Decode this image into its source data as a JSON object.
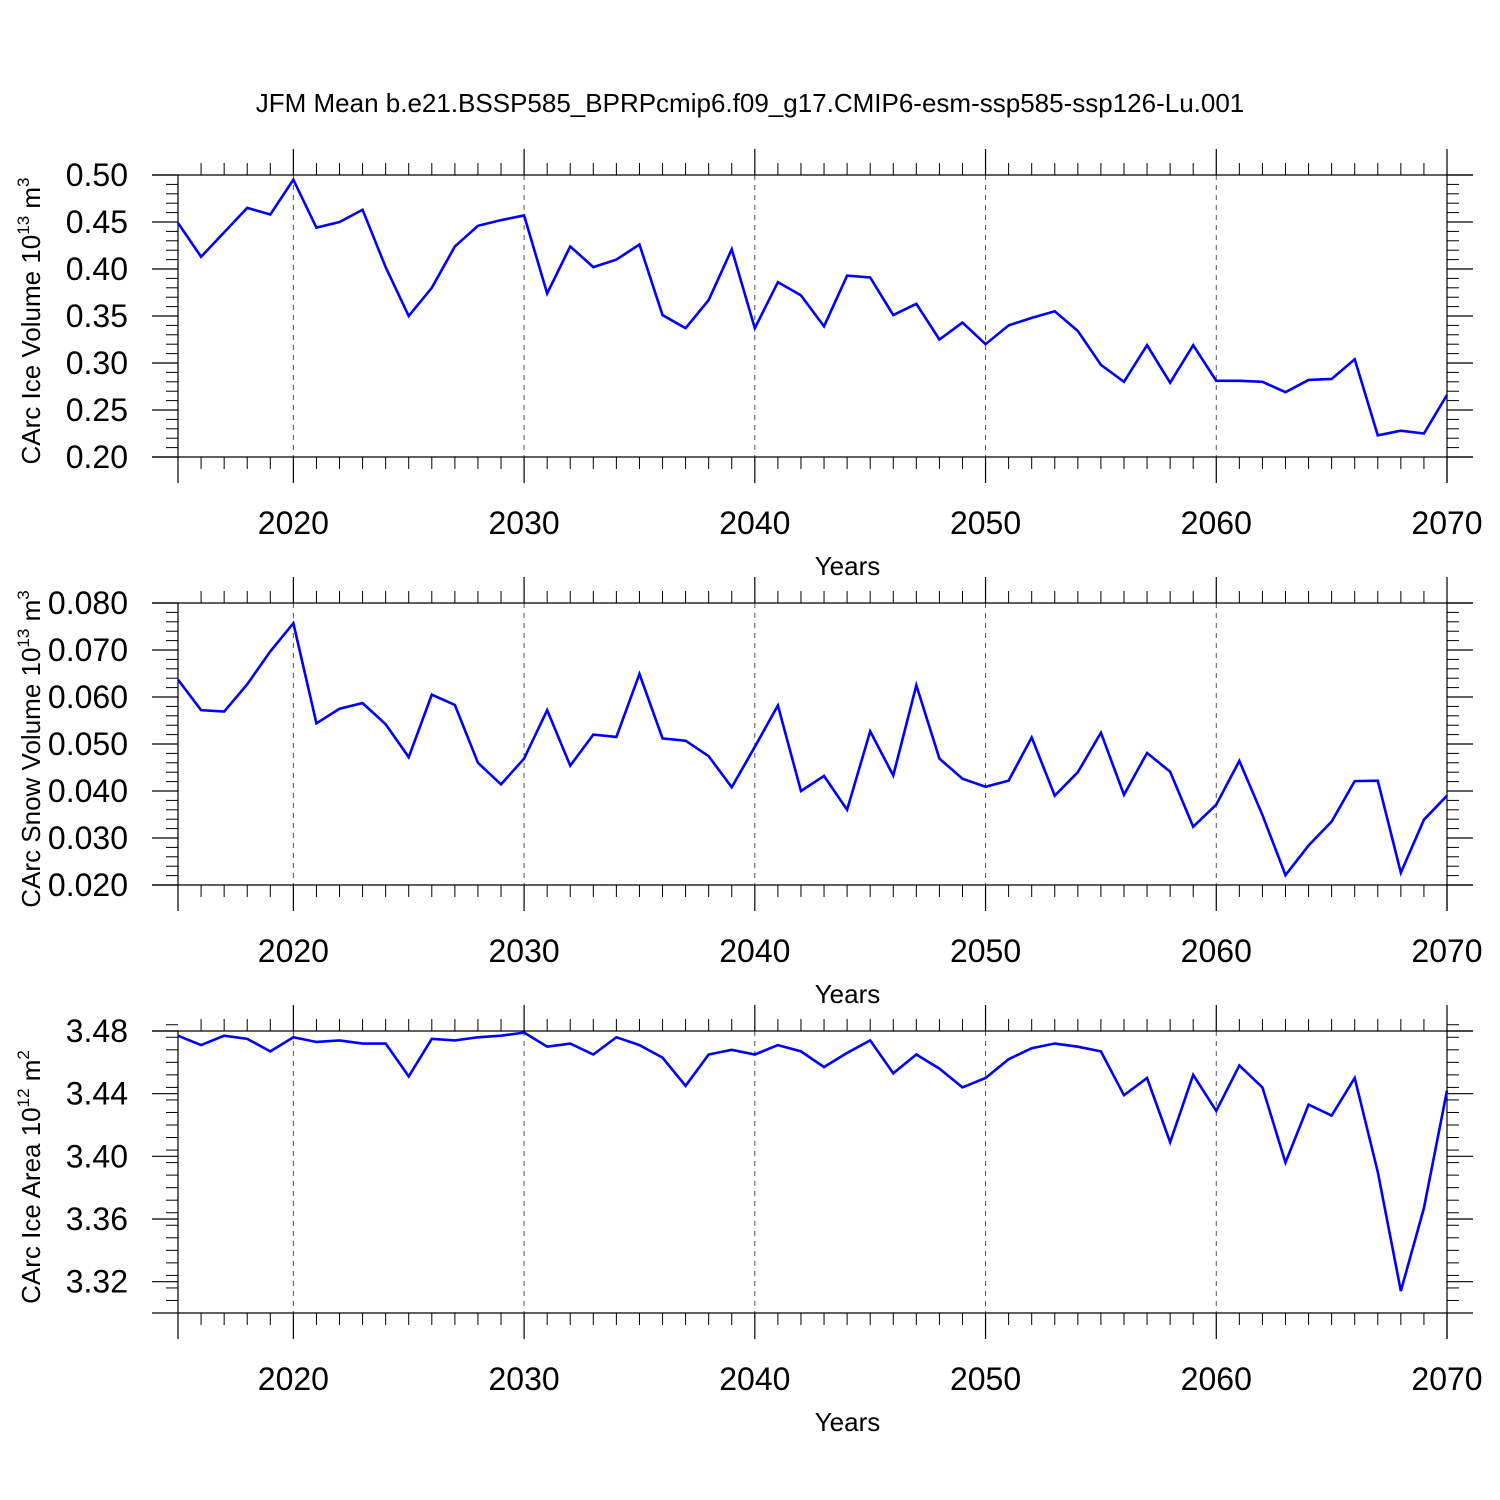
{
  "figure": {
    "title": "JFM Mean b.e21.BSSP585_BPRPcmip6.f09_g17.CMIP6-esm-ssp585-ssp126-Lu.001"
  },
  "chart_data": [
    {
      "type": "line",
      "ylabel_main": "CArc Ice Volume 10",
      "ylabel_exp": "13",
      "ylabel_unit": " m",
      "ylabel_unit_exp": "3",
      "xlabel": "Years",
      "xlim": [
        2015,
        2070
      ],
      "ylim": [
        0.2,
        0.5
      ],
      "yticks": [
        0.2,
        0.25,
        0.3,
        0.35,
        0.4,
        0.45,
        0.5
      ],
      "ytick_labels": [
        "0.20",
        "0.25",
        "0.30",
        "0.35",
        "0.40",
        "0.45",
        "0.50"
      ],
      "yminor_step": 0.01,
      "xticks": [
        2020,
        2030,
        2040,
        2050,
        2060,
        2070
      ],
      "xtick_labels": [
        "2020",
        "2030",
        "2040",
        "2050",
        "2060",
        "2070"
      ],
      "line_color": "#0000ff",
      "series": [
        {
          "name": "CArc Ice Volume",
          "x_start": 2015,
          "values": [
            0.449,
            0.413,
            0.439,
            0.465,
            0.458,
            0.495,
            0.444,
            0.45,
            0.463,
            0.402,
            0.35,
            0.38,
            0.424,
            0.446,
            0.452,
            0.457,
            0.374,
            0.424,
            0.402,
            0.41,
            0.426,
            0.351,
            0.337,
            0.367,
            0.421,
            0.337,
            0.386,
            0.372,
            0.339,
            0.393,
            0.391,
            0.351,
            0.363,
            0.325,
            0.343,
            0.32,
            0.34,
            0.348,
            0.355,
            0.334,
            0.298,
            0.28,
            0.319,
            0.279,
            0.319,
            0.281,
            0.281,
            0.28,
            0.269,
            0.282,
            0.283,
            0.304,
            0.223,
            0.228,
            0.225,
            0.266
          ]
        }
      ]
    },
    {
      "type": "line",
      "ylabel_main": "CArc Snow Volume 10",
      "ylabel_exp": "13",
      "ylabel_unit": " m",
      "ylabel_unit_exp": "3",
      "xlabel": "Years",
      "xlim": [
        2015,
        2070
      ],
      "ylim": [
        0.02,
        0.08
      ],
      "yticks": [
        0.02,
        0.03,
        0.04,
        0.05,
        0.06,
        0.07,
        0.08
      ],
      "ytick_labels": [
        "0.020",
        "0.030",
        "0.040",
        "0.050",
        "0.060",
        "0.070",
        "0.080"
      ],
      "yminor_step": 0.002,
      "xticks": [
        2020,
        2030,
        2040,
        2050,
        2060,
        2070
      ],
      "xtick_labels": [
        "2020",
        "2030",
        "2040",
        "2050",
        "2060",
        "2070"
      ],
      "line_color": "#0000ff",
      "series": [
        {
          "name": "CArc Snow Volume",
          "x_start": 2015,
          "values": [
            0.0637,
            0.0572,
            0.0569,
            0.0627,
            0.0697,
            0.0757,
            0.0544,
            0.0575,
            0.0587,
            0.0542,
            0.0472,
            0.0605,
            0.0583,
            0.046,
            0.0414,
            0.0469,
            0.0572,
            0.0454,
            0.052,
            0.0515,
            0.0649,
            0.0512,
            0.0507,
            0.0474,
            0.0408,
            0.0494,
            0.0582,
            0.04,
            0.0432,
            0.036,
            0.0527,
            0.0433,
            0.0625,
            0.0469,
            0.0426,
            0.0409,
            0.0422,
            0.0514,
            0.039,
            0.044,
            0.0524,
            0.0392,
            0.0481,
            0.0441,
            0.0324,
            0.0371,
            0.0464,
            0.0349,
            0.0221,
            0.0284,
            0.0335,
            0.0421,
            0.0422,
            0.0226,
            0.0339,
            0.039
          ]
        }
      ]
    },
    {
      "type": "line",
      "ylabel_main": "CArc Ice Area 10",
      "ylabel_exp": "12",
      "ylabel_unit": " m",
      "ylabel_unit_exp": "2",
      "xlabel": "Years",
      "xlim": [
        2015,
        2070
      ],
      "ylim": [
        3.3,
        3.48
      ],
      "yticks": [
        3.32,
        3.36,
        3.4,
        3.44,
        3.48
      ],
      "ytick_labels": [
        "3.32",
        "3.36",
        "3.40",
        "3.44",
        "3.48"
      ],
      "yminor_step": 0.008,
      "xticks": [
        2020,
        2030,
        2040,
        2050,
        2060,
        2070
      ],
      "xtick_labels": [
        "2020",
        "2030",
        "2040",
        "2050",
        "2060",
        "2070"
      ],
      "line_color": "#0000ff",
      "series": [
        {
          "name": "CArc Ice Area",
          "x_start": 2015,
          "values": [
            3.477,
            3.471,
            3.477,
            3.475,
            3.467,
            3.476,
            3.473,
            3.474,
            3.472,
            3.472,
            3.451,
            3.475,
            3.474,
            3.476,
            3.477,
            3.479,
            3.47,
            3.472,
            3.465,
            3.476,
            3.471,
            3.463,
            3.445,
            3.465,
            3.468,
            3.465,
            3.471,
            3.467,
            3.457,
            3.466,
            3.474,
            3.453,
            3.465,
            3.456,
            3.444,
            3.45,
            3.462,
            3.469,
            3.472,
            3.47,
            3.467,
            3.439,
            3.45,
            3.409,
            3.452,
            3.429,
            3.458,
            3.444,
            3.396,
            3.433,
            3.426,
            3.45,
            3.39,
            3.314,
            3.367,
            3.442
          ]
        }
      ]
    }
  ]
}
